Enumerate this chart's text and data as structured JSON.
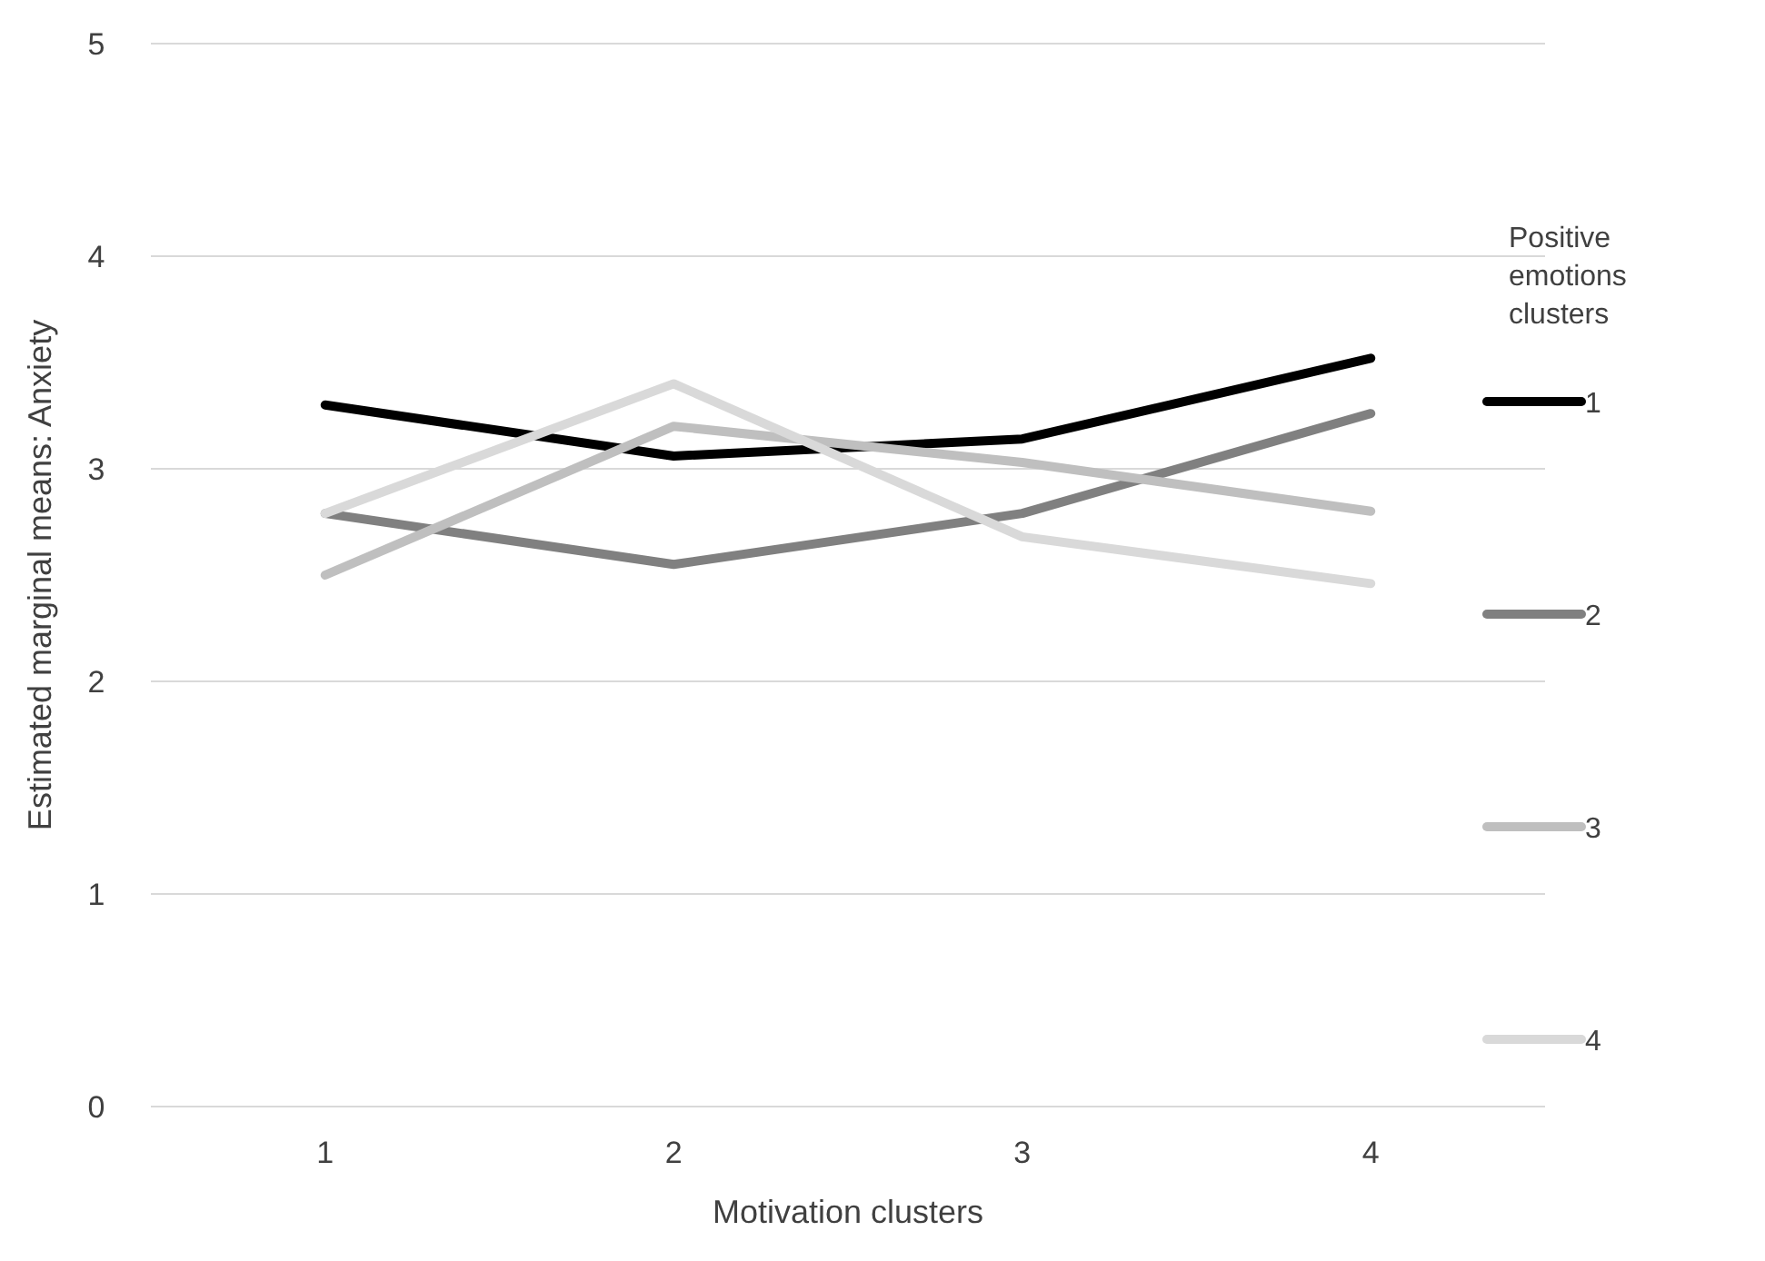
{
  "chart_data": {
    "type": "line",
    "xlabel": "Motivation clusters",
    "ylabel": "Estimated marginal means: Anxiety",
    "legend_title": "Positive emotions clusters",
    "categories": [
      "1",
      "2",
      "3",
      "4"
    ],
    "ylim": [
      0,
      5
    ],
    "yticks": [
      0,
      1,
      2,
      3,
      4,
      5
    ],
    "grid": "y",
    "legend": "right",
    "marker": "none",
    "series": [
      {
        "name": "1",
        "color": "#000000",
        "values": [
          3.3,
          3.06,
          3.14,
          3.52
        ]
      },
      {
        "name": "2",
        "color": "#808080",
        "values": [
          2.79,
          2.55,
          2.79,
          3.26
        ]
      },
      {
        "name": "3",
        "color": "#bfbfbf",
        "values": [
          2.5,
          3.2,
          3.03,
          2.8
        ]
      },
      {
        "name": "4",
        "color": "#d9d9d9",
        "values": [
          2.79,
          3.4,
          2.68,
          2.46
        ]
      }
    ]
  }
}
